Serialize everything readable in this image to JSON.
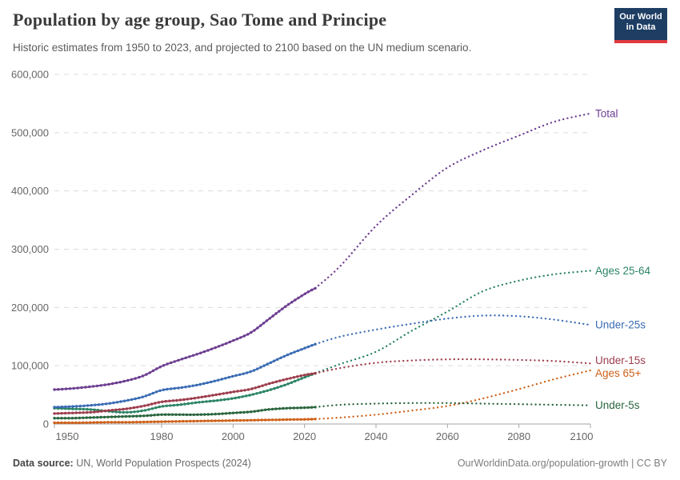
{
  "header": {
    "title": "Population by age group, Sao Tome and Principe",
    "subtitle": "Historic estimates from 1950 to 2023, and projected to 2100 based on the UN medium scenario.",
    "logo": {
      "line1": "Our World",
      "line2": "in Data",
      "bg_color": "#1d3d63",
      "accent_color": "#e0393f"
    }
  },
  "footer": {
    "source_label": "Data source:",
    "source_text": " UN, World Population Prospects (2024)",
    "right_text": "OurWorldinData.org/population-growth | CC BY"
  },
  "chart_data": {
    "type": "line",
    "title": "Population by age group, Sao Tome and Principe",
    "xlabel": "",
    "ylabel": "",
    "xlim": [
      1950,
      2100
    ],
    "ylim": [
      0,
      600000
    ],
    "xticks": [
      1950,
      1980,
      2000,
      2020,
      2040,
      2060,
      2080,
      2100
    ],
    "yticks": [
      0,
      100000,
      200000,
      300000,
      400000,
      500000,
      600000
    ],
    "grid": "horizontal-dashed",
    "legend_position": "right-end-labels",
    "historic_until": 2023,
    "projection_note": "dotted after 2023 (UN medium scenario)",
    "x": [
      1950,
      1955,
      1960,
      1965,
      1970,
      1975,
      1980,
      1985,
      1990,
      1995,
      2000,
      2005,
      2010,
      2015,
      2020,
      2023,
      2030,
      2040,
      2050,
      2060,
      2070,
      2080,
      2090,
      2100
    ],
    "series": [
      {
        "name": "Total",
        "color": "#6d3e91",
        "values": [
          59000,
          61000,
          64000,
          68000,
          74000,
          83000,
          99000,
          110000,
          120000,
          131000,
          143000,
          157000,
          180000,
          203000,
          223000,
          233000,
          271000,
          340000,
          393000,
          440000,
          470000,
          495000,
          519000,
          533000
        ]
      },
      {
        "name": "Ages 25-64",
        "color": "#2c8465",
        "values": [
          27000,
          26000,
          25000,
          22000,
          20000,
          23000,
          30000,
          33000,
          37000,
          40000,
          44000,
          50000,
          58000,
          68000,
          80000,
          87000,
          103000,
          124000,
          160000,
          193000,
          228000,
          246000,
          257000,
          263000
        ]
      },
      {
        "name": "Under-25s",
        "color": "#3b6cb4",
        "values": [
          29000,
          30000,
          32000,
          35000,
          40000,
          47000,
          58000,
          62000,
          67000,
          74000,
          82000,
          90000,
          104000,
          118000,
          130000,
          137000,
          150000,
          162000,
          172000,
          181000,
          186000,
          185000,
          179000,
          170000
        ]
      },
      {
        "name": "Under-15s",
        "color": "#9d3d4d",
        "values": [
          18000,
          19000,
          20000,
          23000,
          26000,
          31000,
          38000,
          41000,
          45000,
          50000,
          55000,
          60000,
          69000,
          77000,
          84000,
          87000,
          96000,
          105000,
          109000,
          111000,
          111000,
          110000,
          108000,
          104000
        ]
      },
      {
        "name": "Ages 65+",
        "color": "#ce6119",
        "values": [
          2000,
          2000,
          2500,
          3000,
          3000,
          3500,
          4000,
          4500,
          5000,
          5500,
          6000,
          6500,
          7000,
          7500,
          8000,
          8500,
          11000,
          16000,
          23000,
          31000,
          44000,
          60000,
          77000,
          92000
        ]
      },
      {
        "name": "Under-5s",
        "color": "#2a663e",
        "values": [
          10000,
          10000,
          11000,
          12000,
          13000,
          14000,
          16000,
          16000,
          16000,
          17000,
          19000,
          21000,
          25000,
          27000,
          28000,
          29000,
          33000,
          35000,
          36000,
          36000,
          35000,
          34000,
          33000,
          32000
        ]
      }
    ]
  }
}
